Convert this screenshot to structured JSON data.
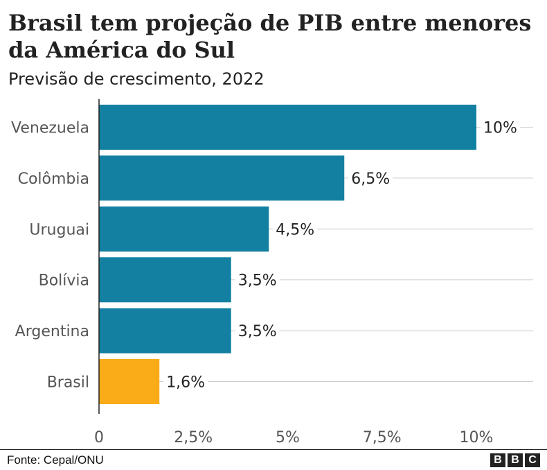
{
  "header": {
    "title": "Brasil tem projeção de PIB entre menores da América do Sul",
    "subtitle": "Previsão de crescimento, 2022"
  },
  "chart_data": {
    "type": "bar",
    "orientation": "horizontal",
    "title": "Brasil tem projeção de PIB entre menores da América do Sul",
    "subtitle": "Previsão de crescimento, 2022",
    "categories": [
      "Venezuela",
      "Colômbia",
      "Uruguai",
      "Bolívia",
      "Argentina",
      "Brasil"
    ],
    "values": [
      10,
      6.5,
      4.5,
      3.5,
      3.5,
      1.6
    ],
    "data_labels": [
      "10%",
      "6,5%",
      "4,5%",
      "3,5%",
      "3,5%",
      "1,6%"
    ],
    "xlim": [
      0,
      11.5
    ],
    "xticks": [
      0,
      2.5,
      5,
      7.5,
      10
    ],
    "xtick_labels": [
      "0",
      "2,5%",
      "5%",
      "7,5%",
      "10%"
    ],
    "grid": true,
    "legend": "none",
    "colors": {
      "default": "#1380A1",
      "highlight": "#FAAB18"
    },
    "highlight_category": "Brasil"
  },
  "footer": {
    "source": "Fonte: Cepal/ONU",
    "logo_letters": [
      "B",
      "B",
      "C"
    ]
  }
}
